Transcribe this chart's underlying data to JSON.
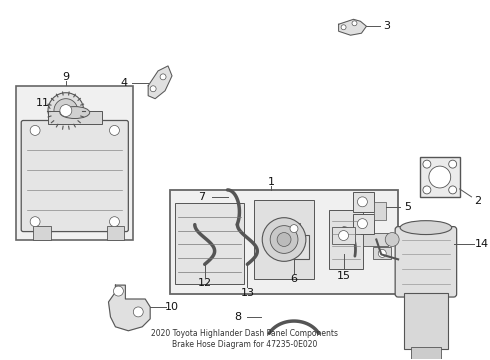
{
  "title": "2020 Toyota Highlander Dash Panel Components\nBrake Hose Diagram for 47235-0E020",
  "bg_color": "#ffffff",
  "line_color": "#555555",
  "text_color": "#111111",
  "figsize": [
    4.9,
    3.6
  ],
  "dpi": 100
}
